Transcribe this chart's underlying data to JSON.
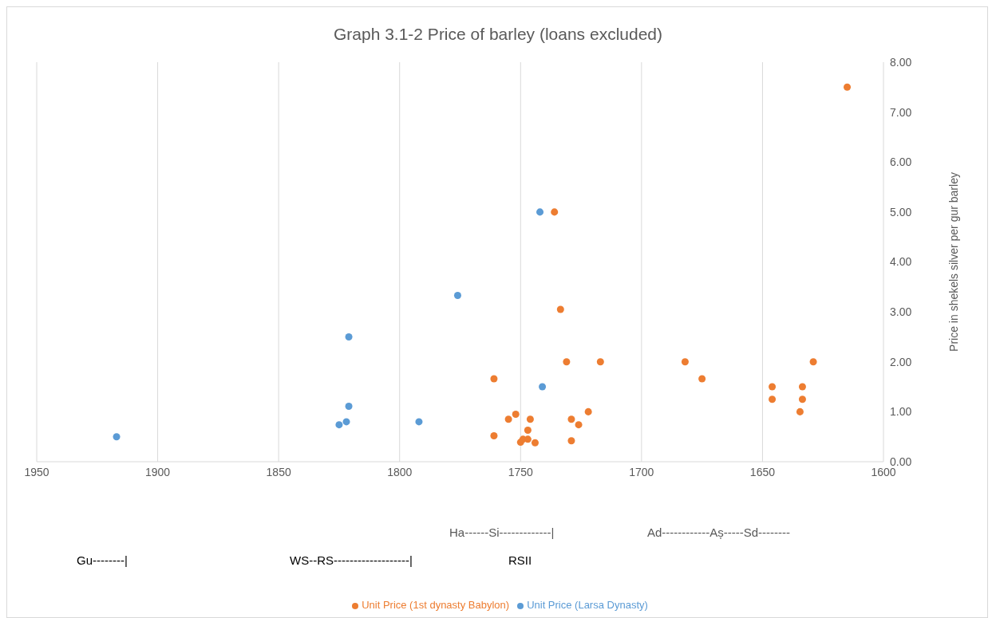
{
  "chart_data": {
    "type": "scatter",
    "title": "Graph 3.1-2 Price of barley (loans excluded)",
    "ylabel": "Price in shekels silver per gur barley",
    "series": [
      {
        "name": "Unit Price (Larsa Dynasty)",
        "color": "#5b9bd5",
        "x": [
          1917,
          1825,
          1822,
          1821,
          1821,
          1792,
          1776,
          1742,
          1741
        ],
        "values": [
          0.5,
          0.74,
          0.8,
          1.11,
          2.5,
          0.8,
          3.33,
          5.0,
          1.5
        ]
      },
      {
        "name": "Unit Price (1st  dynasty Babylon)",
        "color": "#ed7d31",
        "x": [
          1761,
          1761,
          1755,
          1752,
          1750,
          1749,
          1747,
          1747,
          1746,
          1744,
          1736,
          1733.5,
          1731,
          1729,
          1729,
          1726,
          1722,
          1717,
          1682,
          1675,
          1646,
          1646,
          1634.5,
          1633.5,
          1633.5,
          1629,
          1615
        ],
        "values": [
          0.52,
          1.66,
          0.85,
          0.95,
          0.39,
          0.45,
          0.63,
          0.45,
          0.85,
          0.38,
          5.0,
          3.05,
          2.0,
          0.42,
          0.85,
          0.74,
          1.0,
          2.0,
          2.0,
          1.66,
          1.5,
          1.25,
          1.0,
          1.5,
          1.25,
          2.0,
          7.5
        ]
      }
    ],
    "xlim": [
      1950,
      1600
    ],
    "xticks": [
      1950,
      1900,
      1850,
      1800,
      1750,
      1700,
      1650,
      1600
    ],
    "ylim": [
      0,
      8
    ],
    "yticks": [
      {
        "value": 0,
        "label": "0.00"
      },
      {
        "value": 1,
        "label": "1.00"
      },
      {
        "value": 2,
        "label": "2.00"
      },
      {
        "value": 3,
        "label": "3.00"
      },
      {
        "value": 4,
        "label": "4.00"
      },
      {
        "value": 5,
        "label": "5.00"
      },
      {
        "value": 6,
        "label": "6.00"
      },
      {
        "value": 7,
        "label": "7.00"
      },
      {
        "value": 8,
        "label": "8.00"
      }
    ],
    "grid": "x",
    "legend": "bottom",
    "marker": "circle",
    "annotations": [
      "Ha------Si-------------|",
      "Ad------------Aș-----Sd--------",
      "Gu--------|",
      "WS--RS-------------------|",
      "RSII"
    ]
  }
}
